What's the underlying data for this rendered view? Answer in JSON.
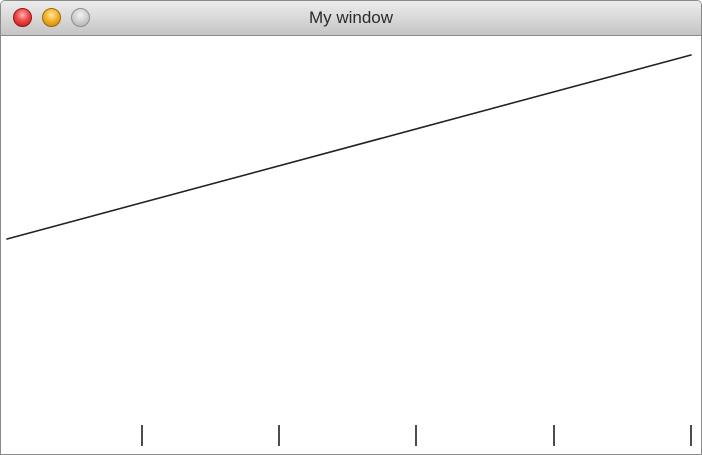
{
  "window": {
    "title": "My window"
  },
  "titlebar": {
    "buttons": [
      {
        "name": "close",
        "color": "#e94343"
      },
      {
        "name": "minimize",
        "color": "#f3ad24"
      },
      {
        "name": "zoom",
        "color": "#c8c8c8"
      }
    ]
  },
  "canvas": {
    "line_color": "#222222",
    "tick_color": "#111111",
    "tick_count": 5
  }
}
